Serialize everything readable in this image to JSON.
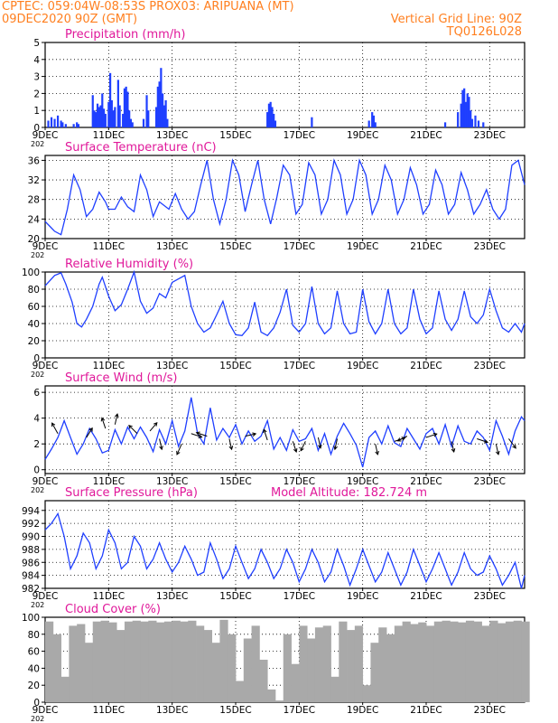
{
  "header": {
    "line1_left": "CPTEC:   059:04W-08:53S   PROX03: ARIPUANA (MT)",
    "line2_left": "09DEC2020 90Z (GMT)",
    "line2_right": "Vertical Grid Line: 90Z",
    "line3_right": "TQ0126L028"
  },
  "colors": {
    "header": "#ff7f1f",
    "title": "#e0189a",
    "series": "#1f3fff",
    "cloud": "#a9a9a9",
    "wind_arrow": "#000000"
  },
  "x_ticks": [
    "9DEC",
    "11DEC",
    "13DEC",
    "15DEC",
    "17DEC",
    "19DEC",
    "21DEC",
    "23DEC"
  ],
  "x_tick_days": [
    0,
    2,
    4,
    6,
    8,
    10,
    12,
    14
  ],
  "year_fragment": "202",
  "chart_data": [
    {
      "type": "bar",
      "title": "Precipitation (mm/h)",
      "ylim": [
        0,
        5
      ],
      "y_ticks": [
        "0",
        "1",
        "2",
        "3",
        "4",
        "5"
      ],
      "x": [
        0.1,
        0.2,
        0.3,
        0.4,
        0.5,
        0.55,
        0.65,
        0.9,
        1.0,
        1.05,
        1.5,
        1.55,
        1.6,
        1.65,
        1.7,
        1.75,
        1.8,
        1.85,
        1.9,
        2.0,
        2.05,
        2.1,
        2.15,
        2.2,
        2.3,
        2.35,
        2.45,
        2.5,
        2.55,
        2.6,
        2.65,
        2.7,
        2.75,
        3.1,
        3.2,
        3.25,
        3.5,
        3.55,
        3.6,
        3.65,
        3.7,
        3.75,
        3.8,
        3.85,
        7.0,
        7.05,
        7.1,
        7.15,
        7.2,
        7.25,
        8.4,
        10.2,
        10.3,
        10.35,
        10.4,
        12.6,
        13.0,
        13.1,
        13.15,
        13.2,
        13.25,
        13.3,
        13.35,
        13.4,
        13.45,
        13.55,
        13.65,
        13.8
      ],
      "values": [
        0.4,
        0.6,
        0.5,
        0.7,
        0.4,
        0.3,
        0.2,
        0.2,
        0.3,
        0.2,
        1.9,
        1.0,
        0.9,
        1.4,
        1.2,
        1.3,
        2.0,
        1.1,
        0.8,
        1.5,
        3.2,
        1.6,
        1.0,
        1.2,
        2.8,
        1.3,
        0.8,
        2.3,
        2.4,
        2.1,
        1.0,
        0.5,
        0.3,
        0.5,
        1.9,
        1.0,
        1.2,
        2.4,
        2.7,
        3.5,
        2.0,
        1.3,
        1.6,
        0.5,
        0.9,
        1.4,
        1.5,
        1.2,
        0.8,
        0.4,
        0.6,
        0.4,
        0.9,
        0.7,
        0.3,
        0.3,
        0.9,
        1.4,
        2.2,
        2.3,
        1.5,
        2.0,
        1.8,
        1.0,
        0.5,
        0.7,
        0.4,
        0.3
      ]
    },
    {
      "type": "line",
      "title": "Surface Temperature (nC)",
      "ylim": [
        20,
        37
      ],
      "y_ticks": [
        "20",
        "24",
        "28",
        "32",
        "36"
      ],
      "x": [
        0,
        0.15,
        0.3,
        0.5,
        0.7,
        0.9,
        1.1,
        1.3,
        1.5,
        1.7,
        1.9,
        2.0,
        2.2,
        2.4,
        2.6,
        2.8,
        3.0,
        3.2,
        3.4,
        3.6,
        3.9,
        4.1,
        4.3,
        4.5,
        4.7,
        4.9,
        5.1,
        5.3,
        5.5,
        5.7,
        5.9,
        6.1,
        6.3,
        6.5,
        6.7,
        6.9,
        7.1,
        7.3,
        7.5,
        7.7,
        7.9,
        8.1,
        8.3,
        8.5,
        8.7,
        8.9,
        9.1,
        9.3,
        9.5,
        9.7,
        9.9,
        10.1,
        10.3,
        10.5,
        10.7,
        10.9,
        11.1,
        11.3,
        11.5,
        11.7,
        11.9,
        12.1,
        12.3,
        12.5,
        12.7,
        12.9,
        13.1,
        13.3,
        13.5,
        13.7,
        13.9,
        14.1,
        14.3,
        14.5,
        14.7,
        14.9,
        15.1
      ],
      "values": [
        23.5,
        22.5,
        21.5,
        20.8,
        26,
        33,
        30,
        24.5,
        26,
        29.5,
        27.5,
        26,
        26,
        28.5,
        26.5,
        25.5,
        33,
        30,
        24.5,
        27.5,
        26,
        29.2,
        26,
        24,
        25.5,
        31,
        36,
        28,
        23,
        28,
        36,
        33,
        25.5,
        31,
        36,
        28,
        23,
        28.5,
        35,
        33,
        25,
        27,
        35.5,
        33,
        25,
        28,
        36,
        33,
        25,
        28,
        36,
        33,
        25,
        28,
        35,
        32,
        25,
        28,
        34.5,
        31,
        25,
        27,
        34,
        31,
        25,
        27,
        33.5,
        30,
        25,
        27,
        30,
        26,
        24,
        26,
        35,
        36,
        31
      ]
    },
    {
      "type": "line",
      "title": "Relative Humidity (%)",
      "ylim": [
        0,
        100
      ],
      "y_ticks": [
        "0",
        "20",
        "40",
        "60",
        "80",
        "100"
      ],
      "x": [
        0,
        0.3,
        0.5,
        0.65,
        0.85,
        1.0,
        1.15,
        1.3,
        1.5,
        1.7,
        1.8,
        2.0,
        2.2,
        2.4,
        2.6,
        2.8,
        3.0,
        3.2,
        3.4,
        3.6,
        3.8,
        4.0,
        4.2,
        4.4,
        4.6,
        4.8,
        5.0,
        5.2,
        5.4,
        5.6,
        5.8,
        6.0,
        6.2,
        6.4,
        6.6,
        6.8,
        7.0,
        7.2,
        7.4,
        7.6,
        7.8,
        8.0,
        8.2,
        8.4,
        8.6,
        8.8,
        9.0,
        9.2,
        9.4,
        9.6,
        9.8,
        10.0,
        10.2,
        10.4,
        10.6,
        10.8,
        11.0,
        11.2,
        11.4,
        11.6,
        11.8,
        12.0,
        12.2,
        12.4,
        12.6,
        12.8,
        13.0,
        13.2,
        13.4,
        13.6,
        13.8,
        14.0,
        14.2,
        14.4,
        14.6,
        14.8,
        15.0,
        15.1
      ],
      "values": [
        84,
        96,
        99,
        86,
        65,
        40,
        36,
        45,
        60,
        86,
        94,
        72,
        55,
        62,
        80,
        100,
        66,
        52,
        58,
        75,
        70,
        88,
        92,
        96,
        60,
        40,
        30,
        35,
        50,
        66,
        40,
        27,
        26,
        35,
        65,
        30,
        26,
        35,
        53,
        80,
        38,
        30,
        40,
        83,
        40,
        28,
        35,
        78,
        40,
        28,
        30,
        80,
        42,
        28,
        40,
        80,
        40,
        28,
        35,
        80,
        45,
        28,
        35,
        78,
        45,
        32,
        45,
        78,
        48,
        40,
        50,
        80,
        55,
        35,
        30,
        40,
        30,
        40
      ]
    },
    {
      "type": "line",
      "title": "Surface Wind (m/s)",
      "ylim": [
        -0.3,
        6.5
      ],
      "y_ticks": [
        "0",
        "2",
        "4",
        "6"
      ],
      "x": [
        0,
        0.2,
        0.4,
        0.6,
        0.8,
        1.0,
        1.2,
        1.4,
        1.6,
        1.8,
        2.0,
        2.2,
        2.4,
        2.6,
        2.8,
        3.0,
        3.2,
        3.4,
        3.6,
        3.8,
        4.0,
        4.2,
        4.4,
        4.6,
        4.8,
        5.0,
        5.2,
        5.4,
        5.6,
        5.8,
        6.0,
        6.2,
        6.4,
        6.6,
        6.8,
        7.0,
        7.2,
        7.4,
        7.6,
        7.8,
        8.0,
        8.2,
        8.4,
        8.6,
        8.8,
        9.0,
        9.2,
        9.4,
        9.6,
        9.8,
        10.0,
        10.2,
        10.4,
        10.6,
        10.8,
        11.0,
        11.2,
        11.4,
        11.6,
        11.8,
        12.0,
        12.2,
        12.4,
        12.6,
        12.8,
        13.0,
        13.2,
        13.4,
        13.6,
        13.8,
        14.0,
        14.2,
        14.4,
        14.6,
        14.8,
        15.0,
        15.1
      ],
      "values": [
        0.8,
        1.6,
        2.5,
        3.8,
        2.5,
        1.2,
        2.0,
        3.2,
        2.4,
        1.3,
        1.5,
        3.1,
        2.0,
        3.3,
        2.4,
        3.3,
        2.5,
        1.4,
        3.1,
        2.0,
        3.8,
        1.8,
        3.0,
        5.6,
        2.8,
        2.0,
        4.8,
        2.3,
        3.2,
        2.5,
        3.5,
        2.0,
        3.0,
        2.2,
        2.6,
        3.8,
        1.6,
        2.5,
        1.5,
        3.1,
        2.2,
        2.4,
        3.2,
        1.5,
        2.8,
        1.2,
        2.6,
        3.6,
        2.8,
        1.9,
        0.2,
        2.5,
        3.0,
        2.0,
        3.4,
        2.1,
        1.8,
        3.2,
        2.4,
        1.6,
        2.8,
        3.2,
        2.0,
        3.5,
        1.8,
        3.4,
        2.2,
        2.0,
        3.0,
        2.5,
        1.5,
        3.8,
        2.6,
        1.2,
        3.0,
        4.1,
        3.8
      ],
      "arrows": [
        [
          0.4,
          2.8,
          -0.5,
          0.9
        ],
        [
          1.3,
          2.5,
          0.5,
          0.8
        ],
        [
          1.9,
          3.2,
          -0.3,
          0.9
        ],
        [
          2.2,
          3.5,
          0.2,
          0.9
        ],
        [
          2.9,
          2.8,
          -0.7,
          0.7
        ],
        [
          3.3,
          3.0,
          0.6,
          0.7
        ],
        [
          3.6,
          2.4,
          0.2,
          -0.9
        ],
        [
          4.3,
          2.0,
          -0.4,
          -0.9
        ],
        [
          4.6,
          2.8,
          0.9,
          -0.3
        ],
        [
          5.1,
          2.6,
          -0.9,
          0.3
        ],
        [
          5.8,
          2.4,
          0.2,
          -0.9
        ],
        [
          6.3,
          2.6,
          0.9,
          0.2
        ],
        [
          7.0,
          2.3,
          -0.3,
          0.9
        ],
        [
          7.8,
          2.2,
          0.3,
          -0.9
        ],
        [
          8.2,
          2.2,
          -0.4,
          -0.8
        ],
        [
          8.6,
          2.5,
          0.2,
          -0.9
        ],
        [
          9.2,
          2.4,
          -0.2,
          -0.9
        ],
        [
          10.4,
          2.0,
          0.2,
          -0.9
        ],
        [
          11.0,
          2.2,
          0.9,
          0.3
        ],
        [
          11.4,
          2.6,
          -0.8,
          -0.4
        ],
        [
          12.0,
          2.5,
          0.9,
          0.3
        ],
        [
          12.8,
          2.2,
          0.2,
          -0.9
        ],
        [
          13.6,
          2.4,
          0.9,
          -0.3
        ],
        [
          14.2,
          2.0,
          0.2,
          -0.9
        ],
        [
          14.6,
          2.4,
          0.6,
          -0.8
        ]
      ]
    },
    {
      "type": "line",
      "title": "Surface Pressure (hPa)",
      "annotation": "Model Altitude: 182.724 m",
      "ylim": [
        982,
        995.5
      ],
      "y_ticks": [
        "982",
        "984",
        "986",
        "988",
        "990",
        "992",
        "994"
      ],
      "x": [
        0,
        0.2,
        0.4,
        0.6,
        0.8,
        1.0,
        1.2,
        1.4,
        1.6,
        1.8,
        2.0,
        2.2,
        2.4,
        2.6,
        2.8,
        3.0,
        3.2,
        3.4,
        3.6,
        3.8,
        4.0,
        4.2,
        4.4,
        4.6,
        4.8,
        5.0,
        5.2,
        5.4,
        5.6,
        5.8,
        6.0,
        6.2,
        6.4,
        6.6,
        6.8,
        7.0,
        7.2,
        7.4,
        7.6,
        7.8,
        8.0,
        8.2,
        8.4,
        8.6,
        8.8,
        9.0,
        9.2,
        9.4,
        9.6,
        9.8,
        10.0,
        10.2,
        10.4,
        10.6,
        10.8,
        11.0,
        11.2,
        11.4,
        11.6,
        11.8,
        12.0,
        12.2,
        12.4,
        12.6,
        12.8,
        13.0,
        13.2,
        13.4,
        13.6,
        13.8,
        14.0,
        14.2,
        14.4,
        14.6,
        14.8,
        15.0,
        15.1
      ],
      "values": [
        991,
        992,
        993.5,
        990,
        985,
        987,
        990.5,
        989,
        985,
        987,
        991,
        989,
        985,
        986,
        990,
        988.5,
        985,
        986.5,
        989,
        986.5,
        984.5,
        986,
        988.5,
        986.5,
        984,
        984.5,
        989,
        986.5,
        983.5,
        985,
        988.5,
        986,
        983.5,
        985,
        988,
        986,
        983.5,
        985,
        988,
        986,
        983,
        985,
        988,
        986,
        983,
        984.5,
        988,
        985.5,
        982.5,
        985,
        988,
        985.5,
        983,
        984.5,
        987.5,
        985,
        982.5,
        984.5,
        988,
        985.5,
        983,
        985,
        987.5,
        985,
        982.5,
        984.5,
        987.5,
        985,
        984,
        984.5,
        987,
        985,
        982.5,
        984,
        986,
        982,
        984
      ]
    },
    {
      "type": "bar",
      "title": "Cloud Cover (%)",
      "ylim": [
        0,
        100
      ],
      "y_ticks": [
        "0",
        "20",
        "40",
        "60",
        "80",
        "100"
      ],
      "x": [
        0,
        0.25,
        0.5,
        0.75,
        1.0,
        1.25,
        1.5,
        1.75,
        2.0,
        2.25,
        2.5,
        2.75,
        3.0,
        3.25,
        3.5,
        3.75,
        4.0,
        4.25,
        4.5,
        4.75,
        5.0,
        5.25,
        5.5,
        5.75,
        6.0,
        6.25,
        6.5,
        6.75,
        7.0,
        7.25,
        7.5,
        7.75,
        8.0,
        8.25,
        8.5,
        8.75,
        9.0,
        9.25,
        9.5,
        9.75,
        10.0,
        10.25,
        10.5,
        10.75,
        11.0,
        11.25,
        11.5,
        11.75,
        12.0,
        12.25,
        12.5,
        12.75,
        13.0,
        13.25,
        13.5,
        13.75,
        14.0,
        14.25,
        14.5,
        14.75,
        15.0
      ],
      "values": [
        95,
        80,
        30,
        90,
        92,
        70,
        95,
        96,
        94,
        85,
        95,
        96,
        95,
        96,
        94,
        95,
        96,
        95,
        96,
        90,
        85,
        70,
        97,
        80,
        25,
        75,
        90,
        50,
        15,
        2,
        80,
        45,
        90,
        75,
        88,
        90,
        30,
        95,
        85,
        90,
        20,
        70,
        88,
        80,
        90,
        95,
        92,
        94,
        90,
        95,
        96,
        95,
        94,
        96,
        95,
        90,
        96,
        93,
        95,
        96,
        95
      ]
    }
  ]
}
